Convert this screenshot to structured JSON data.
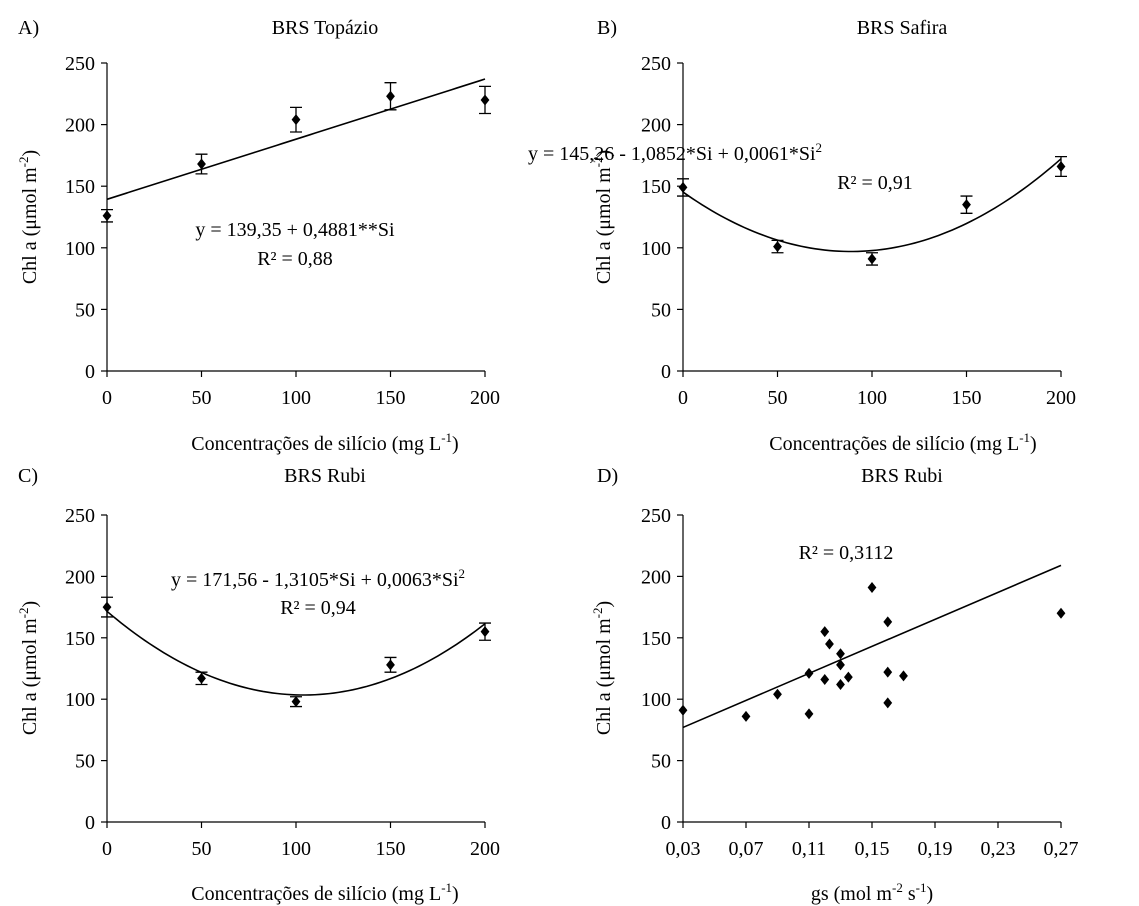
{
  "chart_data": [
    {
      "type": "scatter",
      "letter": "A)",
      "title": "BRS Topázio",
      "xlabel": {
        "main": "Concentrações de silício (mg L",
        "sup": "-1",
        "tail": ")"
      },
      "ylabel": {
        "main": "Chl a (μmol m",
        "sup": "-2",
        "tail": ")"
      },
      "xlim": [
        0,
        200
      ],
      "ylim": [
        0,
        250
      ],
      "xticks": [
        0,
        50,
        100,
        150,
        200
      ],
      "xtick_labels": [
        "0",
        "50",
        "100",
        "150",
        "200"
      ],
      "yticks": [
        0,
        50,
        100,
        150,
        200,
        250
      ],
      "ytick_labels": [
        "0",
        "50",
        "100",
        "150",
        "200",
        "250"
      ],
      "points": [
        {
          "x": 0,
          "y": 126,
          "err": 5
        },
        {
          "x": 50,
          "y": 168,
          "err": 8
        },
        {
          "x": 100,
          "y": 204,
          "err": 10
        },
        {
          "x": 150,
          "y": 223,
          "err": 11
        },
        {
          "x": 200,
          "y": 220,
          "err": 11
        }
      ],
      "fit": {
        "kind": "linear",
        "coef": [
          139.35,
          0.4881
        ]
      },
      "equation_lines": [
        {
          "parts": [
            {
              "text": "y = 139,35 + 0,4881**Si"
            }
          ]
        },
        {
          "parts": [
            {
              "text": "R² = 0,88"
            }
          ]
        }
      ]
    },
    {
      "type": "scatter",
      "letter": "B)",
      "title": "BRS Safira",
      "xlabel": {
        "main": "Concentrações de silício (mg L",
        "sup": "-1",
        "tail": ")"
      },
      "ylabel": {
        "main": "Chl a (μmol m",
        "sup": "-2",
        "tail": ")"
      },
      "xlim": [
        0,
        200
      ],
      "ylim": [
        0,
        250
      ],
      "xticks": [
        0,
        50,
        100,
        150,
        200
      ],
      "xtick_labels": [
        "0",
        "50",
        "100",
        "150",
        "200"
      ],
      "yticks": [
        0,
        50,
        100,
        150,
        200,
        250
      ],
      "ytick_labels": [
        "0",
        "50",
        "100",
        "150",
        "200",
        "250"
      ],
      "points": [
        {
          "x": 0,
          "y": 149,
          "err": 7
        },
        {
          "x": 50,
          "y": 101,
          "err": 5
        },
        {
          "x": 100,
          "y": 91,
          "err": 5
        },
        {
          "x": 150,
          "y": 135,
          "err": 7
        },
        {
          "x": 200,
          "y": 166,
          "err": 8
        }
      ],
      "fit": {
        "kind": "quadratic",
        "coef": [
          145.26,
          -1.0852,
          0.0061
        ]
      },
      "equation_lines": [
        {
          "parts": [
            {
              "text": "y = 145,26 - 1,0852*Si + 0,0061*Si"
            },
            {
              "text": "2",
              "sup": true
            }
          ]
        },
        {
          "parts": [
            {
              "text": "R² = 0,91"
            }
          ]
        }
      ]
    },
    {
      "type": "scatter",
      "letter": "C)",
      "title": "BRS Rubi",
      "xlabel": {
        "main": "Concentrações de silício (mg L",
        "sup": "-1",
        "tail": ")"
      },
      "ylabel": {
        "main": "Chl a (μmol m",
        "sup": "-2",
        "tail": ")"
      },
      "xlim": [
        0,
        200
      ],
      "ylim": [
        0,
        250
      ],
      "xticks": [
        0,
        50,
        100,
        150,
        200
      ],
      "xtick_labels": [
        "0",
        "50",
        "100",
        "150",
        "200"
      ],
      "yticks": [
        0,
        50,
        100,
        150,
        200,
        250
      ],
      "ytick_labels": [
        "0",
        "50",
        "100",
        "150",
        "200",
        "250"
      ],
      "points": [
        {
          "x": 0,
          "y": 175,
          "err": 8
        },
        {
          "x": 50,
          "y": 117,
          "err": 5
        },
        {
          "x": 100,
          "y": 98,
          "err": 4
        },
        {
          "x": 150,
          "y": 128,
          "err": 6
        },
        {
          "x": 200,
          "y": 155,
          "err": 7
        }
      ],
      "fit": {
        "kind": "quadratic",
        "coef": [
          171.56,
          -1.3105,
          0.0063
        ]
      },
      "equation_lines": [
        {
          "parts": [
            {
              "text": "y = 171,56 - 1,3105*Si + 0,0063*Si"
            },
            {
              "text": "2",
              "sup": true
            }
          ]
        },
        {
          "parts": [
            {
              "text": "R² = 0,94"
            }
          ]
        }
      ]
    },
    {
      "type": "scatter",
      "letter": "D)",
      "title": "BRS Rubi",
      "xlabel": {
        "main": "gs (mol m",
        "sup": "-2",
        "mid": " s",
        "sup2": "-1",
        "tail": ")"
      },
      "ylabel": {
        "main": "Chl a  (μmol m",
        "sup": "-2",
        "tail": ")"
      },
      "xlim": [
        0.03,
        0.27
      ],
      "ylim": [
        0,
        250
      ],
      "xticks": [
        0.03,
        0.07,
        0.11,
        0.15,
        0.19,
        0.23,
        0.27
      ],
      "xtick_labels": [
        "0,03",
        "0,07",
        "0,11",
        "0,15",
        "0,19",
        "0,23",
        "0,27"
      ],
      "yticks": [
        0,
        50,
        100,
        150,
        200,
        250
      ],
      "ytick_labels": [
        "0",
        "50",
        "100",
        "150",
        "200",
        "250"
      ],
      "points": [
        {
          "x": 0.03,
          "y": 91
        },
        {
          "x": 0.07,
          "y": 86
        },
        {
          "x": 0.09,
          "y": 104
        },
        {
          "x": 0.11,
          "y": 121
        },
        {
          "x": 0.11,
          "y": 88
        },
        {
          "x": 0.12,
          "y": 155
        },
        {
          "x": 0.123,
          "y": 145
        },
        {
          "x": 0.12,
          "y": 116
        },
        {
          "x": 0.13,
          "y": 137
        },
        {
          "x": 0.13,
          "y": 128
        },
        {
          "x": 0.13,
          "y": 112
        },
        {
          "x": 0.135,
          "y": 118
        },
        {
          "x": 0.15,
          "y": 191
        },
        {
          "x": 0.16,
          "y": 163
        },
        {
          "x": 0.16,
          "y": 122
        },
        {
          "x": 0.16,
          "y": 97
        },
        {
          "x": 0.17,
          "y": 119
        },
        {
          "x": 0.27,
          "y": 170
        }
      ],
      "fit": {
        "kind": "segment",
        "from": [
          0.03,
          77
        ],
        "to": [
          0.27,
          209
        ]
      },
      "equation_lines": [
        {
          "parts": [
            {
              "text": "R² = 0,3112"
            }
          ]
        }
      ]
    }
  ]
}
